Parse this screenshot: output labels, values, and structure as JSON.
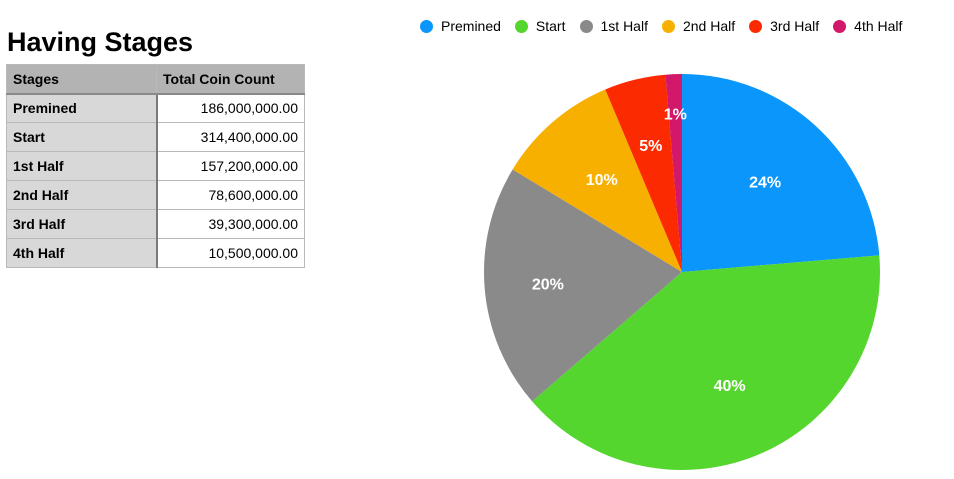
{
  "title": "Having Stages",
  "table": {
    "headers": [
      "Stages",
      "Total Coin Count"
    ],
    "rows": [
      {
        "stage": "Premined",
        "count": "186,000,000.00"
      },
      {
        "stage": "Start",
        "count": "314,400,000.00"
      },
      {
        "stage": "1st Half",
        "count": "157,200,000.00"
      },
      {
        "stage": "2nd Half",
        "count": "78,600,000.00"
      },
      {
        "stage": "3rd Half",
        "count": "39,300,000.00"
      },
      {
        "stage": "4th Half",
        "count": "10,500,000.00"
      }
    ]
  },
  "chart_data": {
    "type": "pie",
    "title": "",
    "legend_position": "top",
    "categories": [
      "Premined",
      "Start",
      "1st Half",
      "2nd Half",
      "3rd Half",
      "4th Half"
    ],
    "values": [
      186000000,
      314400000,
      157200000,
      78600000,
      39300000,
      10500000
    ],
    "labels": [
      "24%",
      "40%",
      "20%",
      "10%",
      "5%",
      "1%"
    ],
    "colors": [
      "#0a96fa",
      "#55d62f",
      "#8a8a8a",
      "#f7b000",
      "#fc2a00",
      "#d2186a"
    ]
  }
}
